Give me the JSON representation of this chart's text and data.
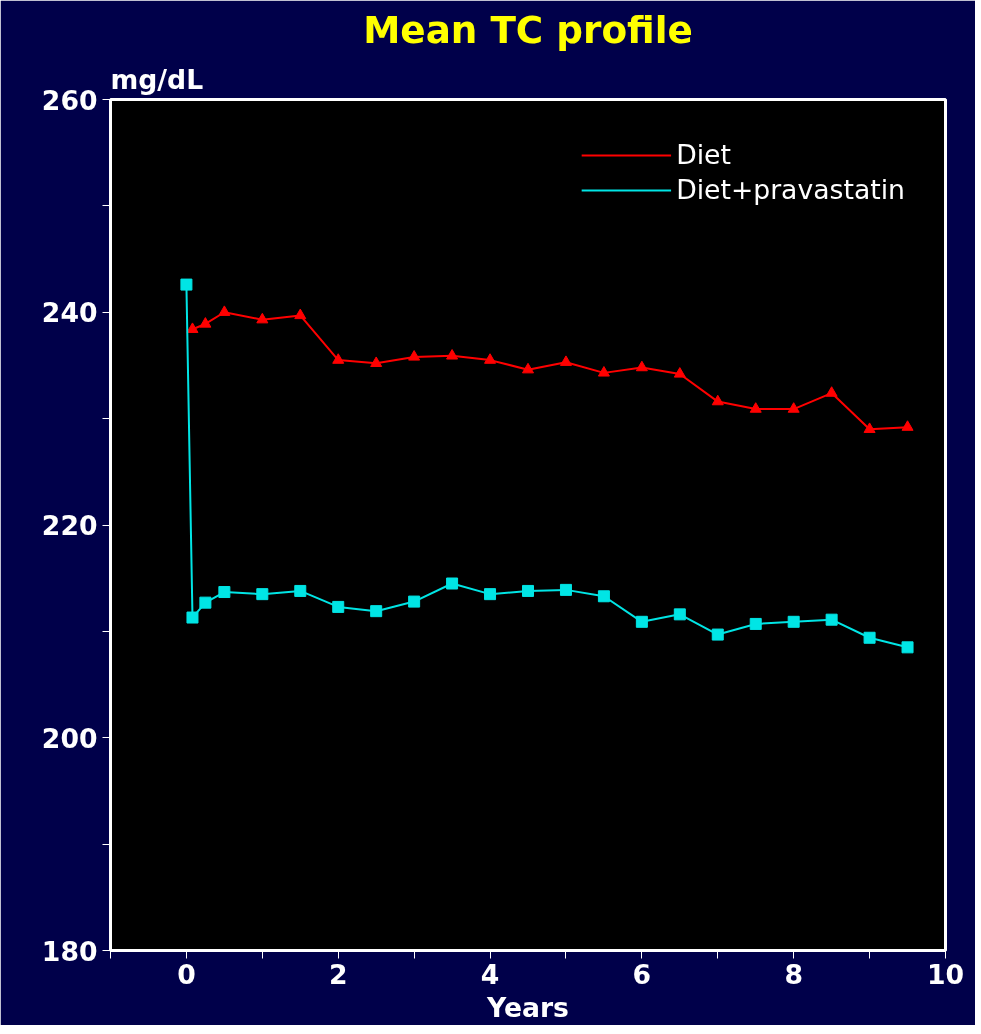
{
  "chart_data": {
    "type": "line",
    "title": "Mean TC profile",
    "xlabel": "Years",
    "ylabel": "mg/dL",
    "x": [
      0,
      0.08,
      0.25,
      0.5,
      1,
      1.5,
      2,
      2.5,
      3,
      3.5,
      4,
      4.5,
      5,
      5.5,
      6,
      6.5,
      7,
      7.5,
      8,
      8.5,
      9,
      9.5
    ],
    "series": [
      {
        "name": "Diet",
        "color": "#ff0000",
        "marker": "triangle",
        "values": [
          null,
          238.4,
          238.9,
          240.0,
          239.3,
          239.7,
          235.5,
          235.2,
          235.8,
          235.9,
          235.5,
          234.6,
          235.3,
          234.3,
          234.8,
          234.2,
          231.6,
          230.9,
          230.9,
          232.4,
          229.0,
          229.2
        ]
      },
      {
        "name": "Diet+pravastatin",
        "color": "#00e5e5",
        "marker": "square",
        "values": [
          242.6,
          211.3,
          212.7,
          213.7,
          213.5,
          213.8,
          212.3,
          211.9,
          212.8,
          214.5,
          213.5,
          213.8,
          213.9,
          213.3,
          210.9,
          211.6,
          209.7,
          210.7,
          210.9,
          211.1,
          209.4,
          208.5
        ]
      }
    ],
    "xlim": [
      -1,
      10
    ],
    "ylim": [
      180,
      260
    ],
    "xticks": [
      {
        "value": -1,
        "label": null
      },
      0,
      {
        "value": 1,
        "label": null
      },
      2,
      {
        "value": 3,
        "label": null
      },
      4,
      {
        "value": 5,
        "label": null
      },
      6,
      {
        "value": 7,
        "label": null
      },
      8,
      {
        "value": 9,
        "label": null
      },
      10
    ],
    "yticks": [
      180,
      {
        "value": 190,
        "label": null
      },
      200,
      {
        "value": 210,
        "label": null
      },
      220,
      {
        "value": 230,
        "label": null
      },
      240,
      {
        "value": 250,
        "label": null
      },
      260
    ],
    "grid": false,
    "legend": "top right",
    "line_style": "solid"
  }
}
